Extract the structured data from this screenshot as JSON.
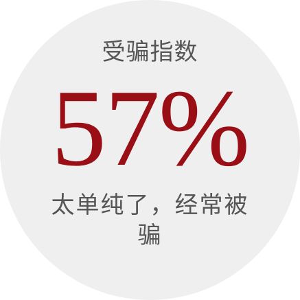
{
  "badge": {
    "title": "受骗指数",
    "value": "57%",
    "description_line1": "太单纯了，经常被",
    "description_line2": "骗"
  },
  "colors": {
    "circle_background": "#efefef",
    "value_color": "#9a0e16",
    "text_color": "#555555"
  }
}
